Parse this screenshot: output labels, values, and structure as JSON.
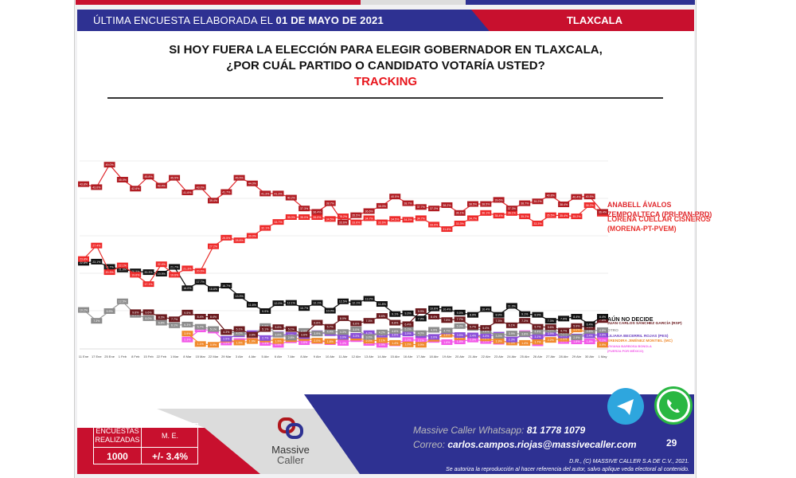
{
  "header": {
    "prefix": "ÚLTIMA ENCUESTA ELABORADA EL",
    "date": "01 DE MAYO DE 2021",
    "state": "TLAXCALA"
  },
  "question": {
    "line1": "SI HOY FUERA LA ELECCIÓN PARA ELEGIR GOBERNADOR EN TLAXCALA,",
    "line2": "¿POR CUÁL PARTIDO O CANDIDATO VOTARÍA USTED?",
    "subtitle": "TRACKING"
  },
  "chart_data": {
    "type": "line",
    "title": "TRACKING",
    "xlabel": "",
    "ylabel": "%",
    "ylim": [
      0,
      60
    ],
    "grid": true,
    "legend": "right",
    "categories": [
      "11 Ene",
      "17 Ene",
      "25 Ene",
      "1 Feb",
      "8 Feb",
      "15 Feb",
      "22 Feb",
      "1 Mar",
      "8 Mar",
      "15 Mar",
      "22 Mar",
      "29 Mar",
      "3 Abr",
      "4 Abr",
      "5 Abr",
      "6 Abr",
      "7 Abr",
      "8 Abr",
      "9 Abr",
      "10 Abr",
      "11 Abr",
      "12 Abr",
      "13 Abr",
      "14 Abr",
      "15 Abr",
      "16 Abr",
      "17 Abr",
      "18 Abr",
      "19 Abr",
      "20 Abr",
      "21 Abr",
      "22 Abr",
      "23 Abr",
      "24 Abr",
      "25 Abr",
      "26 Abr",
      "27 Abr",
      "28 Abr",
      "29 Abr",
      "30 Abr",
      "1 May"
    ],
    "series": [
      {
        "name": "ANABELL ÁVALOS ZEMPOALTECA (PRI-PAN-PRD)",
        "legend": [
          "ANABELL ÁVALOS",
          "ZEMPOALTECA (PRI-PAN-PRD)"
        ],
        "color": "#e0292e",
        "marker": "#b01c22",
        "values": [
          43.8,
          43,
          49,
          45,
          42.6,
          45.8,
          43.4,
          45.5,
          41.6,
          43,
          39.4,
          41.7,
          45.5,
          44,
          41.3,
          41.3,
          40.2,
          37.3,
          36.4,
          38.7,
          33.6,
          35.5,
          36.6,
          38.0,
          40.5,
          38.7,
          37.7,
          37.3,
          38.2,
          36.1,
          38.5,
          38.5,
          39.6,
          37.3,
          38.7,
          39.2,
          40.8,
          38.4,
          40.4,
          40.5,
          36.4
        ]
      },
      {
        "name": "LORENA CUÉLLAR CISNEROS (MORENA-PT-PVEM)",
        "legend": [
          "LORENA CUÉLLAR CISNEROS",
          "(MORENA-PT-PVEM)"
        ],
        "color": "#e8322f",
        "marker": "#ee2a2a",
        "values": [
          23.8,
          27.4,
          20.3,
          22.1,
          19.6,
          17.1,
          22.4,
          19.6,
          21.3,
          20.6,
          27.2,
          29.5,
          28.8,
          30,
          32.1,
          33.7,
          35,
          35,
          35,
          34.5,
          35.2,
          33.6,
          34.7,
          33.6,
          34.5,
          34.3,
          34.7,
          33.0,
          31.8,
          33.3,
          34.7,
          36.1,
          35.4,
          36.1,
          35.2,
          33.3,
          35.5,
          35.4,
          35.2,
          38.2,
          35.9
        ]
      },
      {
        "name": "AÚN NO DECIDE",
        "legend": [
          "AÚN NO DECIDE"
        ],
        "color": "#111111",
        "marker": "#111111",
        "values": [
          22.8,
          23.1,
          21.7,
          21,
          20.5,
          20.3,
          19.9,
          21.7,
          16,
          17.7,
          15.8,
          16.7,
          13.9,
          11.6,
          9.9,
          12,
          12.1,
          10.7,
          12.1,
          10,
          12.5,
          12.1,
          13.2,
          11.8,
          9.1,
          9.3,
          7.9,
          10.6,
          10.4,
          9.5,
          8.9,
          10.4,
          8.9,
          11.3,
          9.1,
          8.9,
          7.3,
          7.9,
          8.4,
          6.4,
          8.4
        ]
      },
      {
        "name": "JUAN CARLOS SÁNCHEZ GARCÍA (RSP)",
        "legend": [
          "JUAN CARLOS SÁNCHEZ GARCÍA (RSP)"
        ],
        "color": "#6b1a1e",
        "marker": "#6b1a1e",
        "values": [
          null,
          null,
          null,
          null,
          9.6,
          9.6,
          8.3,
          7.7,
          9.5,
          8.4,
          8.4,
          4.3,
          5.1,
          3.6,
          5.1,
          5.6,
          5.1,
          3.6,
          6.8,
          5.7,
          8.0,
          6.6,
          7.3,
          8.6,
          6.8,
          6.4,
          9.9,
          8.4,
          7.5,
          7.7,
          5.7,
          5.4,
          7.3,
          6.1,
          7.3,
          5.7,
          5.6,
          4.7,
          5.9,
          5.6,
          7.5
        ]
      },
      {
        "name": "OTRO",
        "legend": [
          "OTRO"
        ],
        "color": "#9a9a9a",
        "marker": "#8c8c8c",
        "values": [
          10.2,
          7.3,
          9.9,
          12.5,
          8.9,
          8,
          6.8,
          6.1,
          6.3,
          5.7,
          5.1,
          4.3,
          4.0,
          3.5,
          5.9,
          3.6,
          2.8,
          4.6,
          3.9,
          4.4,
          4.3,
          5.0,
          3.0,
          4.2,
          4.6,
          5.1,
          4.0,
          4.9,
          4.7,
          5.9,
          5.4,
          4.6,
          3.3,
          3.9,
          3.8,
          4.4,
          4.9,
          4.0,
          2.9,
          4.6,
          4.8
        ]
      },
      {
        "name": "LILIANA BECERRIL ROJAS (PES)",
        "legend": [
          "LILIANA BECERRIL ROJAS (PES)"
        ],
        "color": "#8a4fd8",
        "marker": "#8a4fd8",
        "values": [
          null,
          null,
          null,
          null,
          null,
          null,
          null,
          null,
          null,
          null,
          null,
          2.5,
          3.7,
          4.0,
          2.7,
          3.7,
          3.5,
          3.2,
          4.0,
          4.0,
          3.0,
          3.3,
          4.0,
          3.6,
          3.6,
          3.9,
          3.5,
          3.0,
          4.5,
          3.5,
          3.4,
          3.3,
          3.6,
          2.3,
          3.7,
          3.1,
          3.9,
          3.4,
          3.1,
          3.4,
          3.6
        ]
      },
      {
        "name": "ERENDIRA JIMÉNEZ MONTIEL (MC)",
        "legend": [
          "ERENDIRA JIMÉNEZ MONTIEL (MC)"
        ],
        "color": "#f08a2c",
        "marker": "#f08a2c",
        "values": [
          null,
          null,
          null,
          null,
          null,
          null,
          null,
          null,
          3.9,
          1.1,
          0.9,
          2.3,
          1.5,
          1.9,
          2.3,
          1.9,
          2.4,
          2.7,
          2.0,
          1.8,
          2.9,
          2.8,
          2.0,
          2.1,
          1.4,
          1.0,
          0.9,
          2.5,
          3.6,
          2.9,
          3.4,
          2.6,
          1.9,
          1.5,
          1.4,
          1.7,
          2.2,
          2.5,
          5.0,
          4.2,
          0.9
        ]
      },
      {
        "name": "VIVIANA BARBOSA BONOLA (FUERZA POR MÉXICO)",
        "legend": [
          "VIVIANA BARBOSA BONOLA",
          "(FUERZA POR MÉXICO)"
        ],
        "color": "#f25ae8",
        "marker": "#f25ae8",
        "values": [
          null,
          null,
          null,
          null,
          null,
          null,
          null,
          null,
          2.3,
          5.0,
          4.7,
          1.5,
          1.9,
          2.9,
          1.4,
          0.9,
          2.1,
          1.6,
          1.9,
          1.6,
          1.4,
          2.4,
          1.4,
          0.9,
          1.3,
          2.2,
          2.1,
          2.2,
          1.6,
          1.8,
          2.3,
          1.9,
          1.7,
          1.8,
          4.0,
          1.3,
          4.9,
          1.9,
          1.8,
          1.8,
          2.1
        ]
      }
    ]
  },
  "footer": {
    "encuestas_label": "ENCUESTAS REALIZADAS",
    "me_label": "M. E.",
    "encuestas_value": "1000",
    "me_value": "+/- 3.4%",
    "brand_line1": "Massive",
    "brand_line2": "Caller",
    "whatsapp_label": "Massive Caller Whatsapp:",
    "whatsapp_number": "81 1778 1079",
    "email_label": "Correo:",
    "email": "carlos.campos.riojas@massivecaller.com",
    "copyright": "D.R., (C) MASSIVE CALLER S.A DE C.V., 2021.",
    "disclaimer": "Se autoriza la reproducción al hacer referencia del autor, salvo aplique veda electoral al contenido.",
    "page_number": "29"
  }
}
